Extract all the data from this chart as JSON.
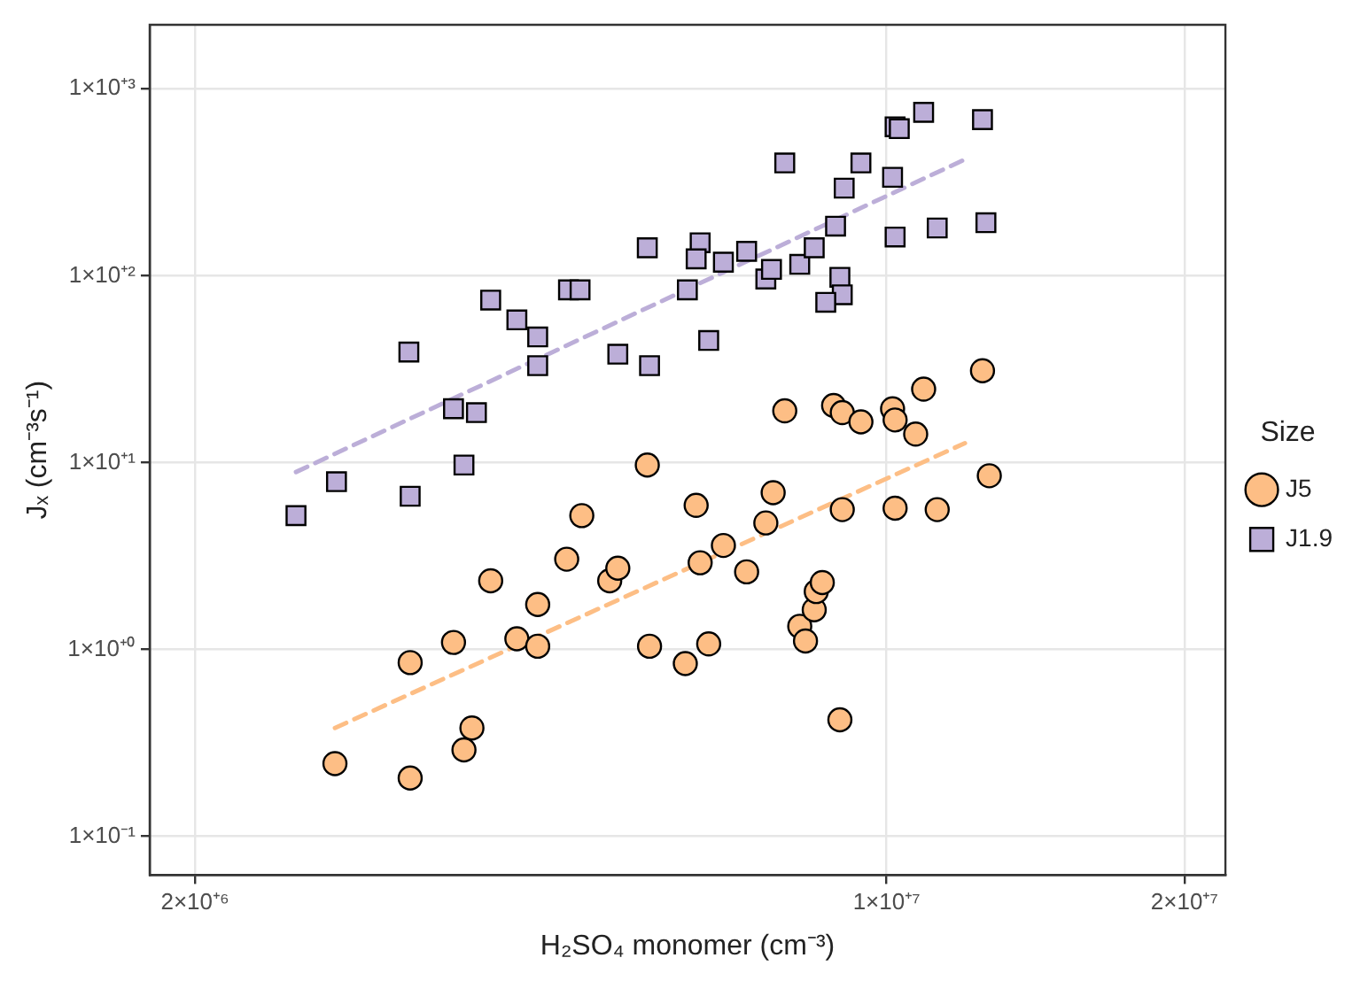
{
  "chart_data": {
    "type": "scatter",
    "xlabel": "H₂SO₄ monomer (cm⁻³)",
    "ylabel": "Jₓ (cm⁻³s⁻¹)",
    "legend_title": "Size",
    "legend": "right",
    "log": "xy",
    "grid": true,
    "xlim": [
      1800000.0,
      22000000.0
    ],
    "xticks": [
      {
        "value": 2000000.0,
        "label": "2×10⁺⁶"
      },
      {
        "value": 10000000.0,
        "label": "1×10⁺⁷"
      },
      {
        "value": 20000000.0,
        "label": "2×10⁺⁷"
      }
    ],
    "ylim": [
      0.062,
      2200
    ],
    "yticks": [
      {
        "value": 0.1,
        "label": "1×10⁻¹"
      },
      {
        "value": 1,
        "label": "1×10⁺⁰"
      },
      {
        "value": 10,
        "label": "1×10⁺¹"
      },
      {
        "value": 100,
        "label": "1×10⁺²"
      },
      {
        "value": 1000,
        "label": "1×10⁺³"
      }
    ],
    "series": [
      {
        "name": "J5",
        "marker": "circle",
        "color": "#fdbe85",
        "x": [
          2770000.0,
          3300000.0,
          3300000.0,
          3650000.0,
          3740000.0,
          3810000.0,
          3980000.0,
          4230000.0,
          4440000.0,
          4440000.0,
          4750000.0,
          4920000.0,
          5250000.0,
          5350000.0,
          5730000.0,
          5760000.0,
          6260000.0,
          6420000.0,
          6480000.0,
          6610000.0,
          6840000.0,
          7220000.0,
          7550000.0,
          7680000.0,
          7890000.0,
          8170000.0,
          8280000.0,
          8450000.0,
          8490000.0,
          8610000.0,
          8840000.0,
          8970000.0,
          9020000.0,
          9020000.0,
          9420000.0,
          10140000.0,
          10200000.0,
          10200000.0,
          10700000.0,
          10900000.0,
          11250000.0,
          12500000.0,
          12700000.0
        ],
        "values": [
          0.245,
          0.205,
          0.85,
          1.09,
          0.29,
          0.38,
          2.33,
          1.14,
          1.74,
          1.04,
          3.04,
          5.2,
          2.33,
          2.72,
          9.7,
          1.04,
          0.84,
          5.9,
          2.91,
          1.07,
          3.6,
          2.6,
          4.75,
          6.9,
          18.9,
          1.33,
          1.11,
          1.63,
          2.04,
          2.28,
          20.2,
          0.42,
          18.5,
          5.6,
          16.5,
          19.4,
          16.9,
          5.7,
          14.2,
          24.7,
          5.6,
          31,
          8.5
        ]
      },
      {
        "name": "J1.9",
        "marker": "square",
        "color": "#bcaed8",
        "x": [
          2530000.0,
          2780000.0,
          3300000.0,
          3740000.0,
          3290000.0,
          3650000.0,
          3850000.0,
          3980000.0,
          4230000.0,
          4440000.0,
          4440000.0,
          4770000.0,
          4900000.0,
          5350000.0,
          5760000.0,
          5730000.0,
          6290000.0,
          6480000.0,
          6420000.0,
          6840000.0,
          6610000.0,
          7220000.0,
          7550000.0,
          7650000.0,
          7890000.0,
          8170000.0,
          8450000.0,
          8880000.0,
          8970000.0,
          9020000.0,
          8680000.0,
          9060000.0,
          9420000.0,
          10140000.0,
          10200000.0,
          10300000.0,
          10900000.0,
          12500000.0,
          10200000.0,
          11250000.0,
          12600000.0
        ],
        "values": [
          5.2,
          7.9,
          6.6,
          9.7,
          39,
          19.4,
          18.5,
          74,
          58,
          47,
          33,
          84,
          84,
          38,
          33,
          141,
          84,
          150,
          123,
          118,
          45,
          135,
          96,
          108,
          401,
          115,
          141,
          184,
          98,
          79,
          72,
          294,
          401,
          336,
          626,
          612,
          748,
          684,
          161,
          180,
          192
        ]
      },
      {
        "type": "line",
        "marker": "none",
        "line_style": "dashed",
        "color": "#fdbe85",
        "x": [
          2770000.0,
          12000000.0
        ],
        "values": [
          0.38,
          12.7
        ]
      },
      {
        "type": "line",
        "marker": "none",
        "line_style": "dashed",
        "color": "#bcaed8",
        "x": [
          2530000.0,
          12000000.0
        ],
        "values": [
          8.9,
          419
        ]
      }
    ]
  }
}
